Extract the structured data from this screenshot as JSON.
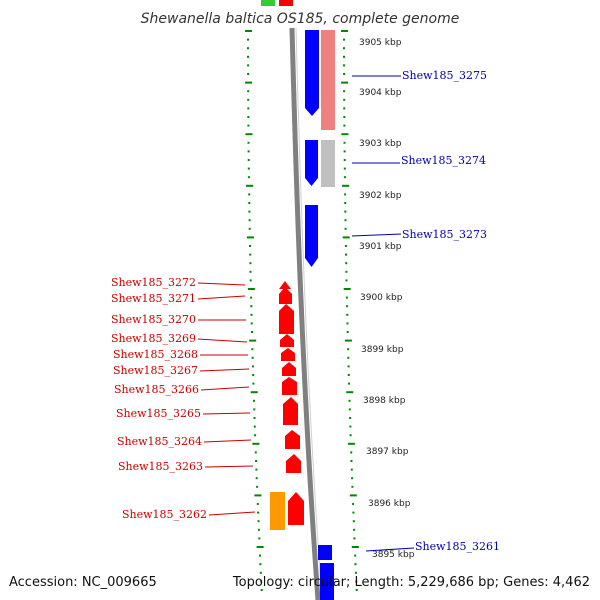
{
  "title": "Shewanella baltica OS185, complete genome",
  "footer": {
    "accession": "Accession: NC_009665",
    "topology": "Topology: circular; Length: 5,229,686 bp; Genes: 4,462"
  },
  "colors": {
    "forward_genes": "#0000ff",
    "reverse_genes": "#ff0000",
    "pink_track": "#f08080",
    "gray_track": "#c0c0c0",
    "orange_gene": "#ff9900",
    "green_gene": "#33cc33",
    "tick_dots": "#008800",
    "right_labels": "#0000aa",
    "left_labels": "#cc0000"
  },
  "scale_labels": [
    "3905 kbp",
    "3904 kbp",
    "3903 kbp",
    "3902 kbp",
    "3901 kbp",
    "3900 kbp",
    "3899 kbp",
    "3898 kbp",
    "3897 kbp",
    "3896 kbp",
    "3895 kbp"
  ],
  "right_genes": [
    "Shew185_3275",
    "Shew185_3274",
    "Shew185_3273",
    "Shew185_3261"
  ],
  "left_genes": [
    "Shew185_3272",
    "Shew185_3271",
    "Shew185_3270",
    "Shew185_3269",
    "Shew185_3268",
    "Shew185_3267",
    "Shew185_3266",
    "Shew185_3265",
    "Shew185_3264",
    "Shew185_3263",
    "Shew185_3262"
  ]
}
